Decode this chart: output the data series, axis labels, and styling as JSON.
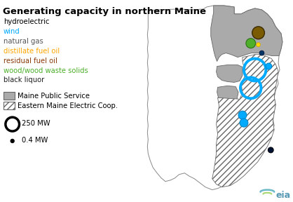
{
  "title": "Generating capacity in northern Maine",
  "title_fontsize": 9.5,
  "legend_items": [
    {
      "label": "hydroelectric",
      "color": "#000000"
    },
    {
      "label": "wind",
      "color": "#00AAFF"
    },
    {
      "label": "natural gas",
      "color": "#555555"
    },
    {
      "label": "distillate fuel oil",
      "color": "#FFA500"
    },
    {
      "label": "residual fuel oil",
      "color": "#8B3A0A"
    },
    {
      "label": "wood/wood waste solids",
      "color": "#4DAF2A"
    },
    {
      "label": "black liquor",
      "color": "#222222"
    }
  ],
  "region_labels": [
    {
      "label": "Maine Public Service",
      "fill": "#AAAAAA",
      "hatch": null
    },
    {
      "label": "Eastern Maine Electric Coop.",
      "fill": "#FFFFFF",
      "hatch": "////"
    }
  ],
  "size_labels": [
    "250 MW",
    "0.4 MW"
  ],
  "eia_color": "#6BB8C8",
  "background_color": "#FFFFFF",
  "map_outline_color": "#888888"
}
